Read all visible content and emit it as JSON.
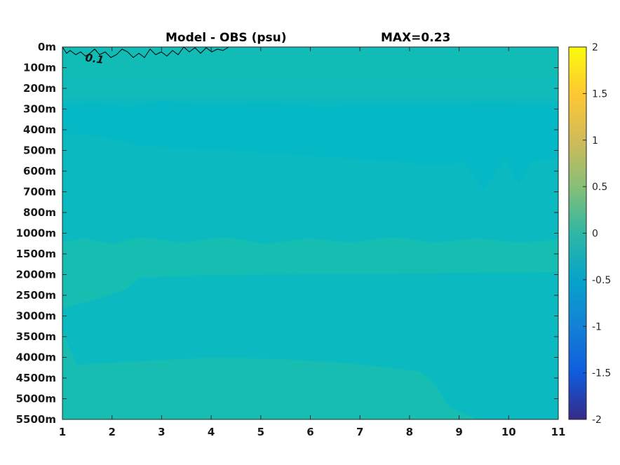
{
  "chart_data": {
    "type": "heatmap",
    "title": "Model - OBS (psu)",
    "subtitle": "MAX=0.23",
    "xlabel": "",
    "ylabel": "",
    "x_ticks": [
      "1",
      "2",
      "3",
      "4",
      "5",
      "6",
      "7",
      "8",
      "9",
      "10",
      "11"
    ],
    "xlim": [
      1,
      11
    ],
    "y_ticks": [
      "0m",
      "100m",
      "200m",
      "300m",
      "400m",
      "500m",
      "600m",
      "700m",
      "800m",
      "1000m",
      "1500m",
      "2000m",
      "2500m",
      "3000m",
      "3500m",
      "4000m",
      "4500m",
      "5000m",
      "5500m"
    ],
    "colorbar": {
      "range": [
        -2,
        2
      ],
      "ticks": [
        "2",
        "1.5",
        "1",
        "0.5",
        "0",
        "-0.5",
        "-1",
        "-1.5",
        "-2"
      ],
      "tick_values": [
        2,
        1.5,
        1,
        0.5,
        0,
        -0.5,
        -1,
        -1.5,
        -2
      ],
      "colormap": "parula"
    },
    "contours": [
      {
        "level": "0.1",
        "color": "#000000"
      }
    ],
    "colors": {
      "background": "#00bfc4",
      "dominant": "#0ab9c0",
      "positive_band": "#14bdb2",
      "negative_band": "#00b7c9"
    }
  }
}
